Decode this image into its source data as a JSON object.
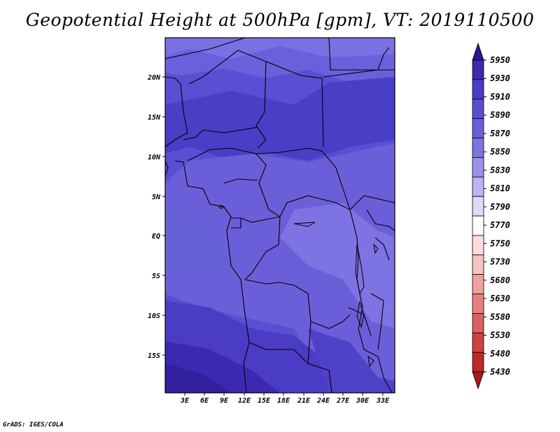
{
  "title": "Geopotential Height at 500hPa [gpm], VT: 2019110500",
  "footer": "GrADS: IGES/COLA",
  "map": {
    "lat_labels": [
      "20N",
      "15N",
      "10N",
      "5N",
      "EQ",
      "5S",
      "10S",
      "15S"
    ],
    "lon_labels": [
      "3E",
      "6E",
      "9E",
      "12E",
      "15E",
      "18E",
      "21E",
      "24E",
      "27E",
      "30E",
      "33E"
    ]
  },
  "colorbar": {
    "levels": [
      "5950",
      "5930",
      "5910",
      "5890",
      "5870",
      "5850",
      "5830",
      "5810",
      "5790",
      "5770",
      "5750",
      "5730",
      "5680",
      "5630",
      "5580",
      "5530",
      "5480",
      "5430"
    ],
    "colors": [
      "#2a1890",
      "#3b2ab0",
      "#4a3cc4",
      "#5a4ed0",
      "#6a5fd8",
      "#7d73e0",
      "#9a92ea",
      "#bab4f2",
      "#dcd9fa",
      "#ffffff",
      "#fbdcdc",
      "#f7c2c2",
      "#f0a0a0",
      "#e88080",
      "#dc6060",
      "#d04040",
      "#c02828",
      "#a81818"
    ]
  }
}
